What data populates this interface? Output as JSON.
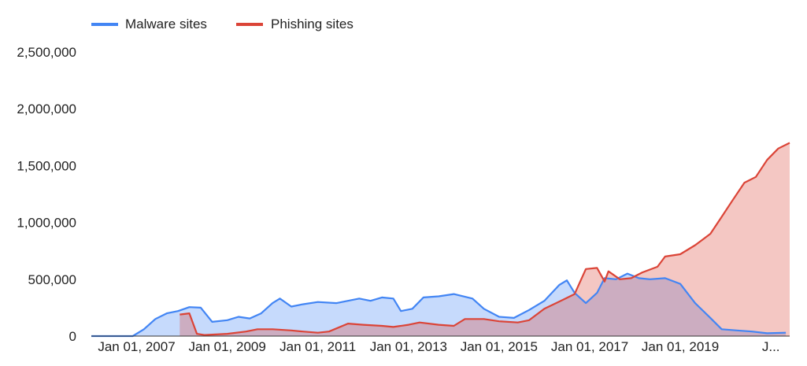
{
  "chart_data": {
    "type": "area",
    "legend_position": "top-left",
    "grid": false,
    "colors": {
      "malware": "#4285f4",
      "phishing": "#db4437"
    },
    "ylim": [
      0,
      2500000
    ],
    "yticks": [
      {
        "value": 0,
        "label": "0"
      },
      {
        "value": 500000,
        "label": "500,000"
      },
      {
        "value": 1000000,
        "label": "1,000,000"
      },
      {
        "value": 1500000,
        "label": "1,500,000"
      },
      {
        "value": 2000000,
        "label": "2,000,000"
      },
      {
        "value": 2500000,
        "label": "2,500,000"
      }
    ],
    "xlim": [
      "2006-01-01",
      "2021-06-01"
    ],
    "xticks": [
      {
        "value": "2007-01-01",
        "label": "Jan 01, 2007"
      },
      {
        "value": "2009-01-01",
        "label": "Jan 01, 2009"
      },
      {
        "value": "2011-01-01",
        "label": "Jan 01, 2011"
      },
      {
        "value": "2013-01-01",
        "label": "Jan 01, 2013"
      },
      {
        "value": "2015-01-01",
        "label": "Jan 01, 2015"
      },
      {
        "value": "2017-01-01",
        "label": "Jan 01, 2017"
      },
      {
        "value": "2019-01-01",
        "label": "Jan 01, 2019"
      },
      {
        "value": "2021-01-01",
        "label": "J..."
      }
    ],
    "series": [
      {
        "name": "Malware sites",
        "key": "malware",
        "points": [
          [
            "2006-01-01",
            0
          ],
          [
            "2006-12-01",
            0
          ],
          [
            "2007-03-01",
            60000
          ],
          [
            "2007-06-01",
            150000
          ],
          [
            "2007-09-01",
            200000
          ],
          [
            "2007-12-01",
            220000
          ],
          [
            "2008-03-01",
            255000
          ],
          [
            "2008-06-01",
            250000
          ],
          [
            "2008-09-01",
            125000
          ],
          [
            "2009-01-01",
            140000
          ],
          [
            "2009-04-01",
            170000
          ],
          [
            "2009-07-01",
            155000
          ],
          [
            "2009-10-01",
            200000
          ],
          [
            "2010-01-01",
            290000
          ],
          [
            "2010-03-01",
            330000
          ],
          [
            "2010-06-01",
            260000
          ],
          [
            "2010-09-01",
            280000
          ],
          [
            "2011-01-01",
            300000
          ],
          [
            "2011-06-01",
            290000
          ],
          [
            "2011-12-01",
            330000
          ],
          [
            "2012-03-01",
            310000
          ],
          [
            "2012-06-01",
            340000
          ],
          [
            "2012-09-01",
            330000
          ],
          [
            "2012-11-01",
            220000
          ],
          [
            "2013-02-01",
            240000
          ],
          [
            "2013-05-01",
            340000
          ],
          [
            "2013-09-01",
            350000
          ],
          [
            "2014-01-01",
            370000
          ],
          [
            "2014-06-01",
            330000
          ],
          [
            "2014-09-01",
            240000
          ],
          [
            "2015-01-01",
            170000
          ],
          [
            "2015-05-01",
            160000
          ],
          [
            "2015-09-01",
            230000
          ],
          [
            "2016-01-01",
            310000
          ],
          [
            "2016-05-01",
            450000
          ],
          [
            "2016-07-01",
            490000
          ],
          [
            "2016-09-01",
            380000
          ],
          [
            "2016-12-01",
            290000
          ],
          [
            "2017-03-01",
            380000
          ],
          [
            "2017-05-01",
            510000
          ],
          [
            "2017-08-01",
            500000
          ],
          [
            "2017-11-01",
            550000
          ],
          [
            "2018-02-01",
            510000
          ],
          [
            "2018-05-01",
            500000
          ],
          [
            "2018-09-01",
            510000
          ],
          [
            "2019-01-01",
            460000
          ],
          [
            "2019-05-01",
            290000
          ],
          [
            "2019-09-01",
            160000
          ],
          [
            "2019-12-01",
            60000
          ],
          [
            "2020-04-01",
            50000
          ],
          [
            "2020-08-01",
            40000
          ],
          [
            "2020-12-01",
            25000
          ],
          [
            "2021-05-01",
            30000
          ]
        ]
      },
      {
        "name": "Phishing sites",
        "key": "phishing",
        "points": [
          [
            "2007-12-15",
            190000
          ],
          [
            "2008-03-01",
            200000
          ],
          [
            "2008-05-01",
            20000
          ],
          [
            "2008-07-01",
            10000
          ],
          [
            "2009-01-01",
            20000
          ],
          [
            "2009-06-01",
            40000
          ],
          [
            "2009-09-01",
            60000
          ],
          [
            "2010-01-01",
            60000
          ],
          [
            "2010-06-01",
            50000
          ],
          [
            "2010-09-01",
            40000
          ],
          [
            "2011-01-01",
            30000
          ],
          [
            "2011-04-01",
            40000
          ],
          [
            "2011-09-01",
            110000
          ],
          [
            "2012-01-01",
            100000
          ],
          [
            "2012-06-01",
            90000
          ],
          [
            "2012-09-01",
            80000
          ],
          [
            "2013-01-01",
            100000
          ],
          [
            "2013-04-01",
            120000
          ],
          [
            "2013-09-01",
            100000
          ],
          [
            "2014-01-01",
            90000
          ],
          [
            "2014-04-01",
            150000
          ],
          [
            "2014-09-01",
            150000
          ],
          [
            "2015-01-01",
            130000
          ],
          [
            "2015-06-01",
            120000
          ],
          [
            "2015-09-01",
            140000
          ],
          [
            "2016-01-01",
            240000
          ],
          [
            "2016-06-01",
            320000
          ],
          [
            "2016-09-01",
            370000
          ],
          [
            "2016-12-01",
            590000
          ],
          [
            "2017-03-01",
            600000
          ],
          [
            "2017-05-01",
            480000
          ],
          [
            "2017-06-01",
            570000
          ],
          [
            "2017-09-01",
            500000
          ],
          [
            "2017-12-01",
            510000
          ],
          [
            "2018-03-01",
            560000
          ],
          [
            "2018-07-01",
            610000
          ],
          [
            "2018-09-01",
            700000
          ],
          [
            "2019-01-01",
            720000
          ],
          [
            "2019-05-01",
            800000
          ],
          [
            "2019-09-01",
            900000
          ],
          [
            "2019-12-01",
            1050000
          ],
          [
            "2020-03-01",
            1200000
          ],
          [
            "2020-06-01",
            1350000
          ],
          [
            "2020-09-01",
            1400000
          ],
          [
            "2020-12-01",
            1550000
          ],
          [
            "2021-03-01",
            1650000
          ],
          [
            "2021-06-01",
            1700000
          ]
        ]
      }
    ]
  }
}
